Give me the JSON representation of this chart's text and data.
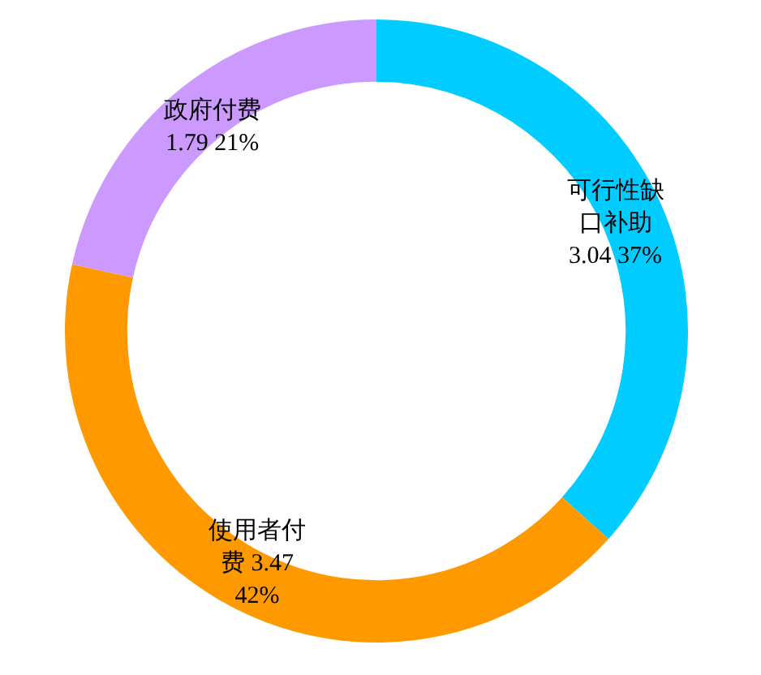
{
  "chart_data": {
    "type": "donut",
    "categories": [
      "可行性缺口补助",
      "使用者付费",
      "政府付费"
    ],
    "values": [
      3.04,
      3.47,
      1.79
    ],
    "value_labels": [
      "3.04 37%",
      "3.47 42%",
      "1.79 21%"
    ],
    "colors": [
      "#00ccff",
      "#ff9900",
      "#cc99ff"
    ],
    "legend": false
  }
}
